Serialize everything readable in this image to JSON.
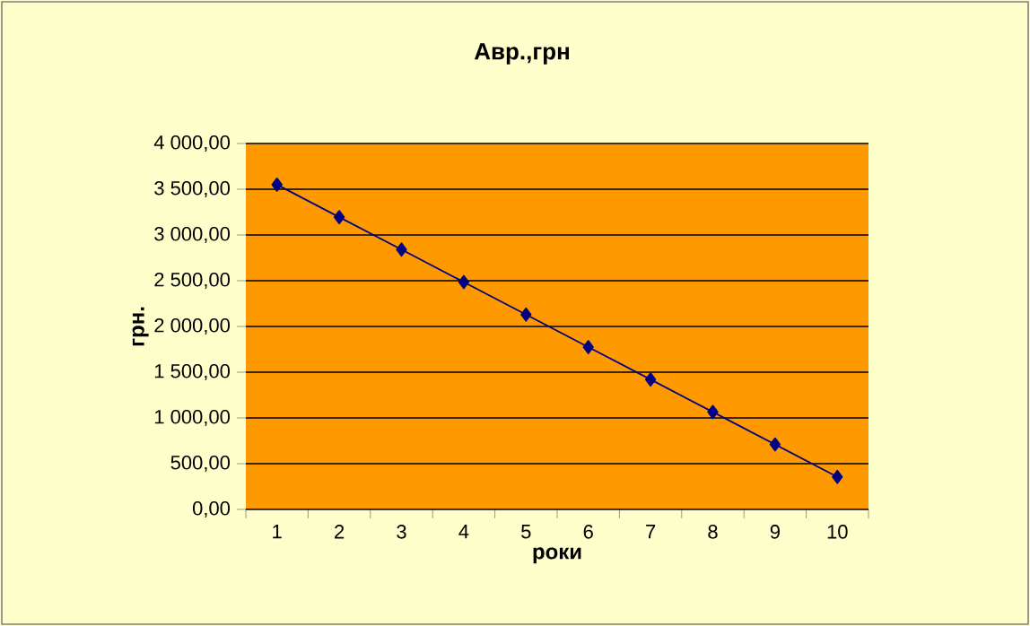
{
  "chart_data": {
    "type": "line",
    "title": "Авр.,грн",
    "xlabel": "роки",
    "ylabel": "грн.",
    "categories": [
      "1",
      "2",
      "3",
      "4",
      "5",
      "6",
      "7",
      "8",
      "9",
      "10"
    ],
    "series": [
      {
        "color": "#000080",
        "values": [
          3550,
          3195,
          2840,
          2485,
          2130,
          1775,
          1420,
          1065,
          710,
          355
        ]
      }
    ],
    "ylim": [
      0,
      4000
    ],
    "yticks": [
      {
        "value": 0,
        "label": "0,00"
      },
      {
        "value": 500,
        "label": "500,00"
      },
      {
        "value": 1000,
        "label": "1 000,00"
      },
      {
        "value": 1500,
        "label": "1 500,00"
      },
      {
        "value": 2000,
        "label": "2 000,00"
      },
      {
        "value": 2500,
        "label": "2 500,00"
      },
      {
        "value": 3000,
        "label": "3 000,00"
      },
      {
        "value": 3500,
        "label": "3 500,00"
      },
      {
        "value": 4000,
        "label": "4 000,00"
      }
    ],
    "grid": "y",
    "marker": "diamond",
    "line_style": "solid"
  }
}
